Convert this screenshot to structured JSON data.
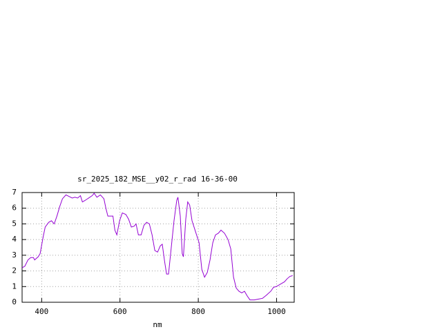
{
  "chart_data": {
    "type": "line",
    "title": "sr_2025_182_MSE__y02_r_rad 16-36-00",
    "x_label": "nm",
    "x": [
      350,
      357,
      365,
      372,
      379,
      382,
      391,
      396,
      404,
      409,
      418,
      425,
      432,
      439,
      446,
      453,
      462,
      470,
      478,
      485,
      492,
      499,
      504,
      511,
      520,
      529,
      534,
      541,
      550,
      559,
      564,
      569,
      576,
      582,
      587,
      592,
      599,
      606,
      615,
      622,
      629,
      636,
      641,
      647,
      654,
      661,
      668,
      675,
      682,
      689,
      696,
      703,
      708,
      714,
      719,
      724,
      731,
      738,
      745,
      748,
      754,
      759,
      762,
      768,
      773,
      778,
      784,
      793,
      802,
      809,
      816,
      823,
      830,
      837,
      844,
      851,
      858,
      867,
      876,
      883,
      890,
      897,
      904,
      911,
      918,
      925,
      932,
      943,
      953,
      964,
      974,
      985,
      992,
      999,
      1006,
      1013,
      1020,
      1027,
      1034,
      1041
    ],
    "series": [
      {
        "color": "#9400d3",
        "values": [
          2.2,
          2.3,
          2.7,
          2.85,
          2.85,
          2.7,
          2.9,
          3.1,
          4.2,
          4.8,
          5.1,
          5.2,
          5.0,
          5.5,
          6.1,
          6.6,
          6.85,
          6.75,
          6.65,
          6.7,
          6.65,
          6.8,
          6.4,
          6.5,
          6.65,
          6.8,
          6.95,
          6.7,
          6.85,
          6.6,
          6.0,
          5.5,
          5.5,
          5.5,
          4.6,
          4.3,
          5.2,
          5.7,
          5.6,
          5.3,
          4.8,
          4.85,
          5.0,
          4.3,
          4.3,
          4.9,
          5.1,
          5.0,
          4.3,
          3.3,
          3.2,
          3.6,
          3.7,
          2.6,
          1.8,
          1.8,
          3.5,
          5.2,
          6.5,
          6.7,
          5.5,
          3.1,
          2.9,
          5.3,
          6.4,
          6.2,
          5.2,
          4.5,
          3.8,
          2.1,
          1.6,
          1.9,
          2.7,
          3.8,
          4.3,
          4.4,
          4.6,
          4.4,
          4.0,
          3.4,
          1.6,
          0.9,
          0.7,
          0.6,
          0.7,
          0.4,
          0.15,
          0.15,
          0.2,
          0.25,
          0.45,
          0.7,
          0.95,
          1.0,
          1.1,
          1.2,
          1.3,
          1.5,
          1.65,
          1.7
        ]
      }
    ],
    "xlim": [
      350,
      1045
    ],
    "xticks": [
      400,
      600,
      800,
      1000
    ],
    "ylim": [
      0,
      7
    ],
    "yticks": [
      0,
      1,
      2,
      3,
      4,
      5,
      6,
      7
    ],
    "grid": true
  }
}
